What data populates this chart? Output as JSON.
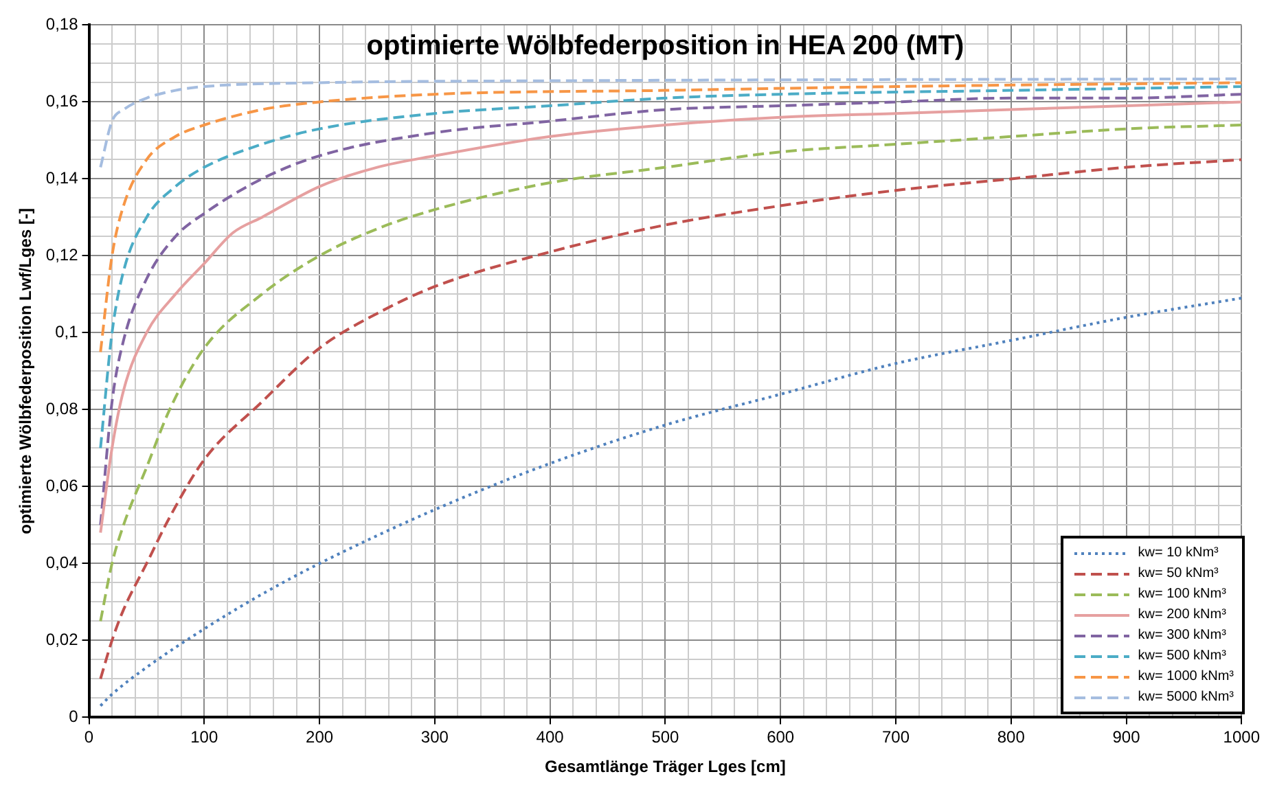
{
  "chart_data": {
    "type": "line",
    "title": "optimierte Wölbfederposition in HEA 200 (MT)",
    "xlabel": "Gesamtlänge Träger Lges [cm]",
    "ylabel": "optimierte Wölbfederposition Lwf/Lges [-]",
    "xlim": [
      0,
      1000
    ],
    "ylim": [
      0,
      0.18
    ],
    "xticks": [
      0,
      {
        "value": 20,
        "label": null
      },
      {
        "value": 40,
        "label": null
      },
      {
        "value": 60,
        "label": null
      },
      {
        "value": 80,
        "label": null
      },
      100,
      {
        "value": 120,
        "label": null
      },
      {
        "value": 140,
        "label": null
      },
      {
        "value": 160,
        "label": null
      },
      {
        "value": 180,
        "label": null
      },
      200,
      {
        "value": 220,
        "label": null
      },
      {
        "value": 240,
        "label": null
      },
      {
        "value": 260,
        "label": null
      },
      {
        "value": 280,
        "label": null
      },
      300,
      {
        "value": 320,
        "label": null
      },
      {
        "value": 340,
        "label": null
      },
      {
        "value": 360,
        "label": null
      },
      {
        "value": 380,
        "label": null
      },
      400,
      {
        "value": 420,
        "label": null
      },
      {
        "value": 440,
        "label": null
      },
      {
        "value": 460,
        "label": null
      },
      {
        "value": 480,
        "label": null
      },
      500,
      {
        "value": 520,
        "label": null
      },
      {
        "value": 540,
        "label": null
      },
      {
        "value": 560,
        "label": null
      },
      {
        "value": 580,
        "label": null
      },
      600,
      {
        "value": 620,
        "label": null
      },
      {
        "value": 640,
        "label": null
      },
      {
        "value": 660,
        "label": null
      },
      {
        "value": 680,
        "label": null
      },
      700,
      {
        "value": 720,
        "label": null
      },
      {
        "value": 740,
        "label": null
      },
      {
        "value": 760,
        "label": null
      },
      {
        "value": 780,
        "label": null
      },
      800,
      {
        "value": 820,
        "label": null
      },
      {
        "value": 840,
        "label": null
      },
      {
        "value": 860,
        "label": null
      },
      {
        "value": 880,
        "label": null
      },
      900,
      {
        "value": 920,
        "label": null
      },
      {
        "value": 940,
        "label": null
      },
      {
        "value": 960,
        "label": null
      },
      {
        "value": 980,
        "label": null
      },
      1000
    ],
    "yticks": [
      0,
      {
        "value": 0.005,
        "label": null
      },
      {
        "value": 0.01,
        "label": null
      },
      {
        "value": 0.015,
        "label": null
      },
      {
        "value": 0.02,
        "label": "0,02"
      },
      {
        "value": 0.025,
        "label": null
      },
      {
        "value": 0.03,
        "label": null
      },
      {
        "value": 0.035,
        "label": null
      },
      {
        "value": 0.04,
        "label": "0,04"
      },
      {
        "value": 0.045,
        "label": null
      },
      {
        "value": 0.05,
        "label": null
      },
      {
        "value": 0.055,
        "label": null
      },
      {
        "value": 0.06,
        "label": "0,06"
      },
      {
        "value": 0.065,
        "label": null
      },
      {
        "value": 0.07,
        "label": null
      },
      {
        "value": 0.075,
        "label": null
      },
      {
        "value": 0.08,
        "label": "0,08"
      },
      {
        "value": 0.085,
        "label": null
      },
      {
        "value": 0.09,
        "label": null
      },
      {
        "value": 0.095,
        "label": null
      },
      {
        "value": 0.1,
        "label": "0,1"
      },
      {
        "value": 0.105,
        "label": null
      },
      {
        "value": 0.11,
        "label": null
      },
      {
        "value": 0.115,
        "label": null
      },
      {
        "value": 0.12,
        "label": "0,12"
      },
      {
        "value": 0.125,
        "label": null
      },
      {
        "value": 0.13,
        "label": null
      },
      {
        "value": 0.135,
        "label": null
      },
      {
        "value": 0.14,
        "label": "0,14"
      },
      {
        "value": 0.145,
        "label": null
      },
      {
        "value": 0.15,
        "label": null
      },
      {
        "value": 0.155,
        "label": null
      },
      {
        "value": 0.16,
        "label": "0,16"
      },
      {
        "value": 0.165,
        "label": null
      },
      {
        "value": 0.17,
        "label": null
      },
      {
        "value": 0.175,
        "label": null
      },
      {
        "value": 0.18,
        "label": "0,18"
      }
    ],
    "grid": true,
    "legend": "bottom right",
    "marker": "none",
    "series": [
      {
        "name": "kw= 10 kNm³",
        "color": "#4f81bd",
        "line_style": "dotted",
        "x": [
          10,
          20,
          50,
          100,
          150,
          200,
          300,
          400,
          500,
          600,
          700,
          800,
          900,
          1000
        ],
        "values": [
          0.003,
          0.006,
          0.013,
          0.023,
          0.032,
          0.04,
          0.054,
          0.066,
          0.076,
          0.084,
          0.092,
          0.098,
          0.104,
          0.109
        ]
      },
      {
        "name": "kw= 50 kNm³",
        "color": "#c0504d",
        "line_style": "dashed",
        "x": [
          10,
          20,
          30,
          50,
          70,
          100,
          150,
          200,
          250,
          300,
          400,
          500,
          600,
          700,
          800,
          900,
          1000
        ],
        "values": [
          0.01,
          0.02,
          0.028,
          0.04,
          0.052,
          0.067,
          0.082,
          0.096,
          0.105,
          0.112,
          0.121,
          0.128,
          0.133,
          0.137,
          0.14,
          0.143,
          0.145
        ]
      },
      {
        "name": "kw= 100 kNm³",
        "color": "#9bbb59",
        "line_style": "dashed",
        "x": [
          10,
          20,
          30,
          50,
          70,
          100,
          150,
          200,
          250,
          300,
          400,
          500,
          600,
          700,
          800,
          900,
          1000
        ],
        "values": [
          0.025,
          0.04,
          0.05,
          0.065,
          0.08,
          0.096,
          0.11,
          0.12,
          0.127,
          0.132,
          0.139,
          0.143,
          0.147,
          0.149,
          0.151,
          0.153,
          0.154
        ]
      },
      {
        "name": "kw= 200 kNm³",
        "color": "#e6a0a0",
        "line_style": "solid",
        "x": [
          10,
          20,
          30,
          50,
          75,
          100,
          125,
          150,
          200,
          250,
          300,
          400,
          500,
          600,
          700,
          800,
          900,
          1000
        ],
        "values": [
          0.048,
          0.07,
          0.085,
          0.1,
          0.11,
          0.118,
          0.126,
          0.13,
          0.138,
          0.143,
          0.146,
          0.151,
          0.154,
          0.156,
          0.157,
          0.158,
          0.159,
          0.16
        ]
      },
      {
        "name": "kw= 300 kNm³",
        "color": "#8064a2",
        "line_style": "dashed",
        "x": [
          10,
          20,
          30,
          50,
          75,
          100,
          150,
          200,
          300,
          400,
          500,
          600,
          700,
          800,
          900,
          1000
        ],
        "values": [
          0.05,
          0.082,
          0.098,
          0.114,
          0.125,
          0.131,
          0.14,
          0.146,
          0.152,
          0.155,
          0.158,
          0.159,
          0.16,
          0.161,
          0.161,
          0.162
        ]
      },
      {
        "name": "kw= 500 kNm³",
        "color": "#4bacc6",
        "line_style": "dashed",
        "x": [
          10,
          20,
          30,
          50,
          75,
          100,
          150,
          200,
          300,
          400,
          500,
          600,
          800,
          1000
        ],
        "values": [
          0.07,
          0.1,
          0.116,
          0.13,
          0.138,
          0.143,
          0.149,
          0.153,
          0.157,
          0.159,
          0.161,
          0.162,
          0.163,
          0.164
        ]
      },
      {
        "name": "kw= 1000 kNm³",
        "color": "#f79646",
        "line_style": "dashed",
        "x": [
          10,
          20,
          30,
          50,
          75,
          100,
          150,
          200,
          300,
          500,
          700,
          1000
        ],
        "values": [
          0.095,
          0.12,
          0.133,
          0.145,
          0.151,
          0.154,
          0.158,
          0.16,
          0.162,
          0.163,
          0.164,
          0.165
        ]
      },
      {
        "name": "kw= 5000 kNm³",
        "color": "#a5bde0",
        "line_style": "dashed",
        "x": [
          10,
          20,
          30,
          50,
          75,
          100,
          200,
          400,
          1000
        ],
        "values": [
          0.143,
          0.155,
          0.158,
          0.161,
          0.163,
          0.164,
          0.165,
          0.1655,
          0.166
        ]
      }
    ]
  }
}
